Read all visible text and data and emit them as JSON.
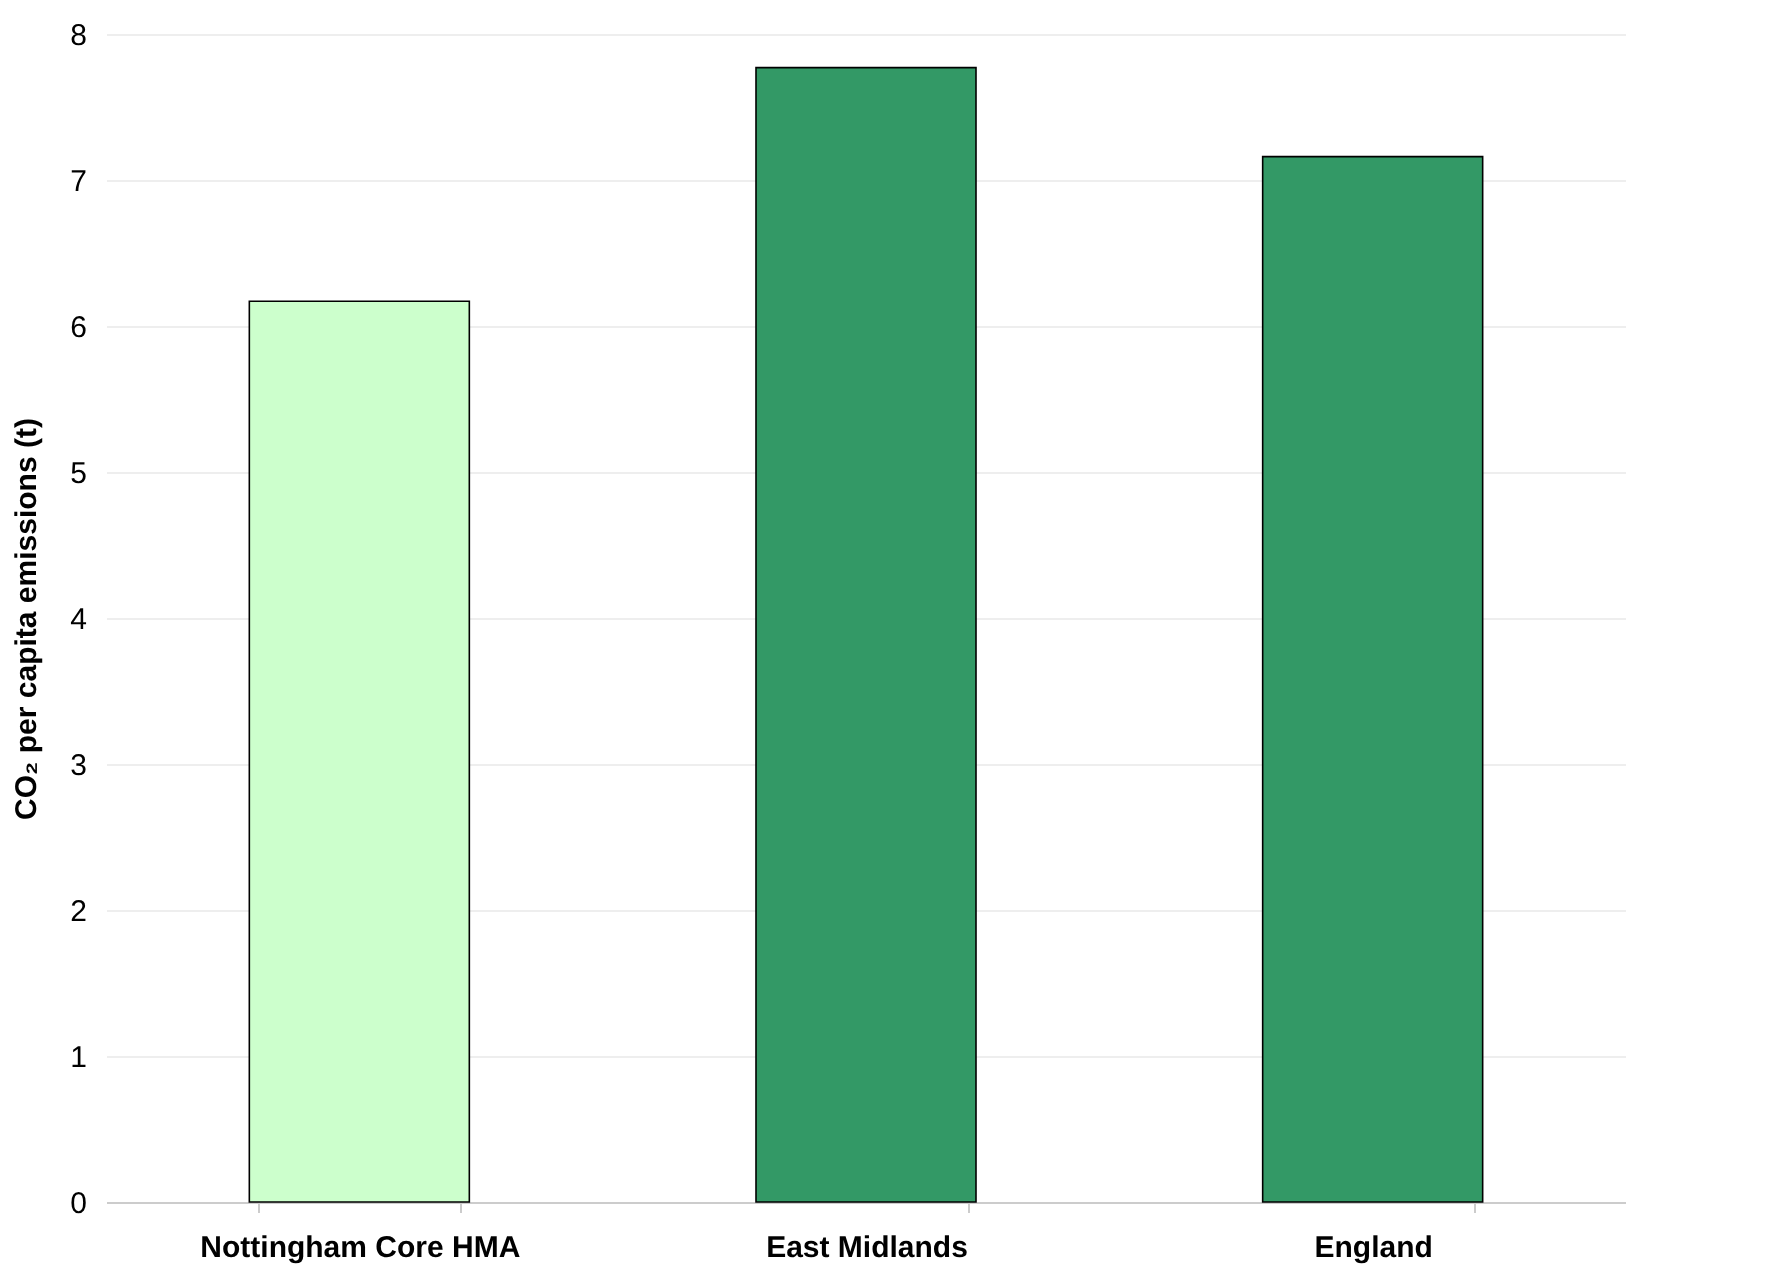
{
  "chart_data": {
    "type": "bar",
    "ylabel": "CO₂ per capita emissions (t)",
    "categories": [
      "Nottingham Core HMA",
      "East Midlands",
      "England"
    ],
    "values": [
      6.17,
      7.77,
      7.16
    ],
    "colors": [
      "#ccffcc",
      "#339966",
      "#339966"
    ],
    "ylim": [
      0,
      8
    ],
    "yticks": [
      0,
      1,
      2,
      3,
      4,
      5,
      6,
      7,
      8
    ],
    "grid": "y"
  }
}
